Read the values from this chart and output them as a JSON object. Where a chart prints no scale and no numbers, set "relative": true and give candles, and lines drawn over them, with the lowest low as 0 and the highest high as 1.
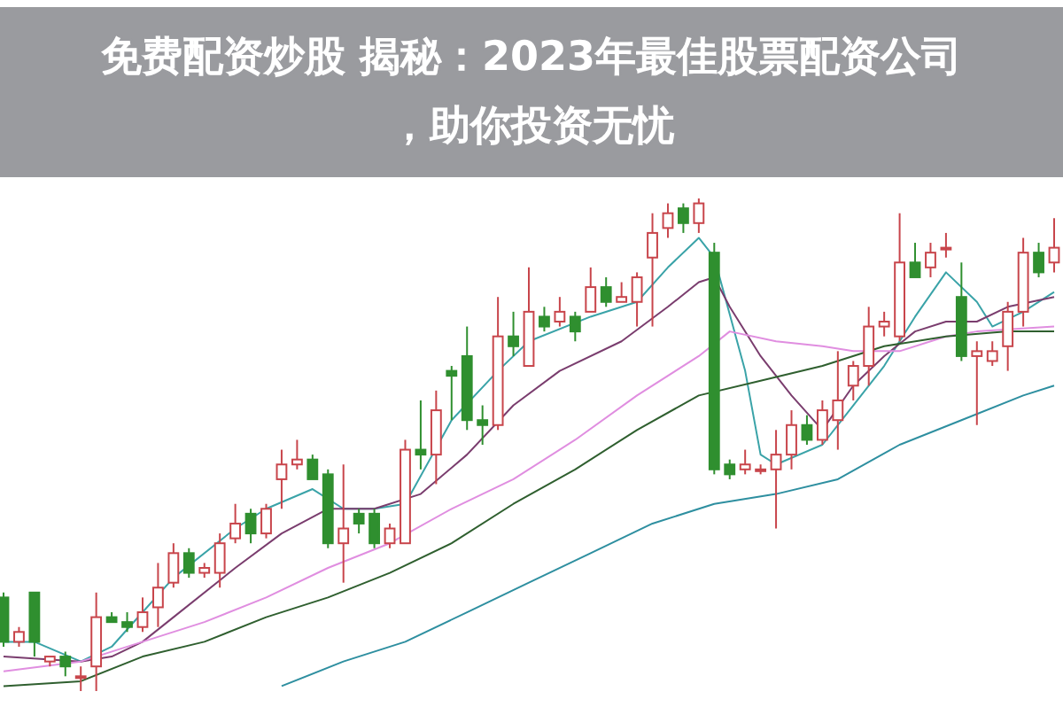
{
  "chart_data": {
    "type": "candlestick",
    "title": "免费配资炒股 揭秘：2023年最佳股票配资公司，助你投资无忧",
    "relative": true,
    "categories": [
      null,
      null,
      null,
      null,
      null,
      null,
      null,
      null,
      null,
      null,
      null,
      null,
      null,
      null,
      null,
      null,
      null,
      null,
      null,
      null,
      null,
      null,
      null,
      null,
      null,
      null,
      null,
      null,
      null,
      null,
      null,
      null,
      null,
      null,
      null,
      null,
      null,
      null,
      null,
      null,
      null,
      null,
      null,
      null,
      null,
      null,
      null,
      null,
      null,
      null,
      null,
      null,
      null,
      null,
      null,
      null,
      null,
      null,
      null,
      null,
      null,
      null,
      null,
      null,
      null,
      null,
      null,
      null,
      null
    ],
    "ohlc": [
      [
        0.19,
        0.2,
        0.09,
        0.1
      ],
      [
        0.1,
        0.13,
        0.09,
        0.12
      ],
      [
        0.2,
        0.2,
        0.07,
        0.1
      ],
      [
        0.06,
        0.07,
        0.05,
        0.07
      ],
      [
        0.07,
        0.08,
        0.03,
        0.05
      ],
      [
        0.03,
        0.05,
        0,
        0.03
      ],
      [
        0.05,
        0.2,
        0,
        0.15
      ],
      [
        0.15,
        0.16,
        0.14,
        0.14
      ],
      [
        0.14,
        0.16,
        0.12,
        0.13
      ],
      [
        0.13,
        0.19,
        0.12,
        0.16
      ],
      [
        0.17,
        0.26,
        0.13,
        0.21
      ],
      [
        0.22,
        0.3,
        0.21,
        0.28
      ],
      [
        0.28,
        0.29,
        0.23,
        0.24
      ],
      [
        0.24,
        0.26,
        0.23,
        0.25
      ],
      [
        0.24,
        0.32,
        0.21,
        0.3
      ],
      [
        0.31,
        0.38,
        0.3,
        0.34
      ],
      [
        0.36,
        0.37,
        0.3,
        0.32
      ],
      [
        0.32,
        0.38,
        0.31,
        0.37
      ],
      [
        0.43,
        0.49,
        0.37,
        0.46
      ],
      [
        0.46,
        0.51,
        0.45,
        0.47
      ],
      [
        0.47,
        0.48,
        0.43,
        0.43
      ],
      [
        0.44,
        0.45,
        0.29,
        0.3
      ],
      [
        0.3,
        0.46,
        0.22,
        0.33
      ],
      [
        0.36,
        0.37,
        0.32,
        0.34
      ],
      [
        0.36,
        0.37,
        0.29,
        0.3
      ],
      [
        0.3,
        0.34,
        0.29,
        0.33
      ],
      [
        0.3,
        0.51,
        0.3,
        0.49
      ],
      [
        0.49,
        0.59,
        0.45,
        0.48
      ],
      [
        0.48,
        0.61,
        0.42,
        0.57
      ],
      [
        0.65,
        0.66,
        0.55,
        0.64
      ],
      [
        0.68,
        0.74,
        0.53,
        0.55
      ],
      [
        0.55,
        0.58,
        0.5,
        0.54
      ],
      [
        0.54,
        0.8,
        0.53,
        0.72
      ],
      [
        0.72,
        0.77,
        0.68,
        0.7
      ],
      [
        0.66,
        0.86,
        0.66,
        0.77
      ],
      [
        0.76,
        0.78,
        0.73,
        0.74
      ],
      [
        0.75,
        0.8,
        0.74,
        0.77
      ],
      [
        0.76,
        0.77,
        0.71,
        0.73
      ],
      [
        0.77,
        0.86,
        0.77,
        0.82
      ],
      [
        0.82,
        0.84,
        0.78,
        0.79
      ],
      [
        0.79,
        0.83,
        0.79,
        0.8
      ],
      [
        0.79,
        0.85,
        0.74,
        0.84
      ],
      [
        0.88,
        0.97,
        0.74,
        0.93
      ],
      [
        0.94,
        0.99,
        0.92,
        0.97
      ],
      [
        0.98,
        0.99,
        0.93,
        0.95
      ],
      [
        0.95,
        1,
        0.93,
        0.99
      ],
      [
        0.89,
        0.91,
        0.44,
        0.45
      ],
      [
        0.46,
        0.47,
        0.43,
        0.44
      ],
      [
        0.45,
        0.49,
        0.44,
        0.46
      ],
      [
        0.45,
        0.46,
        0.44,
        0.45
      ],
      [
        0.45,
        0.53,
        0.33,
        0.48
      ],
      [
        0.48,
        0.57,
        0.45,
        0.54
      ],
      [
        0.54,
        0.56,
        0.5,
        0.51
      ],
      [
        0.51,
        0.59,
        0.5,
        0.57
      ],
      [
        0.55,
        0.69,
        0.49,
        0.59
      ],
      [
        0.62,
        0.67,
        0.59,
        0.66
      ],
      [
        0.66,
        0.78,
        0.62,
        0.74
      ],
      [
        0.74,
        0.77,
        0.72,
        0.75
      ],
      [
        0.72,
        0.97,
        0.71,
        0.87
      ],
      [
        0.87,
        0.91,
        0.84,
        0.84
      ],
      [
        0.86,
        0.91,
        0.84,
        0.89
      ],
      [
        0.9,
        0.93,
        0.88,
        0.9
      ],
      [
        0.8,
        0.87,
        0.67,
        0.68
      ],
      [
        0.68,
        0.71,
        0.54,
        0.69
      ],
      [
        0.67,
        0.71,
        0.66,
        0.69
      ],
      [
        0.7,
        0.79,
        0.65,
        0.77
      ],
      [
        0.77,
        0.92,
        0.74,
        0.89
      ],
      [
        0.89,
        0.91,
        0.84,
        0.85
      ],
      [
        0.87,
        0.96,
        0.85,
        0.9
      ]
    ],
    "series": [
      {
        "type": "line",
        "color": "#3aa3a8",
        "values": [
          0.1,
          null,
          0.1,
          null,
          null,
          0.06,
          null,
          0.09,
          null,
          0.16,
          null,
          0.23,
          null,
          null,
          null,
          0.33,
          null,
          0.37,
          null,
          null,
          0.41,
          null,
          0.37,
          null,
          0.37,
          null,
          0.38,
          null,
          null,
          0.55,
          null,
          null,
          0.65,
          null,
          0.71,
          null,
          null,
          null,
          0.76,
          null,
          null,
          0.79,
          null,
          0.86,
          null,
          0.92,
          0.88,
          null,
          0.65,
          0.48,
          0.46,
          null,
          null,
          0.5,
          null,
          0.58,
          null,
          0.66,
          null,
          0.76,
          null,
          0.85,
          null,
          0.79,
          0.74,
          null,
          0.77,
          null,
          0.81
        ]
      },
      {
        "type": "line",
        "color": "#7a3d6e",
        "values": [
          0.07,
          null,
          null,
          null,
          null,
          0.06,
          null,
          0.07,
          null,
          0.1,
          null,
          0.15,
          null,
          null,
          null,
          0.25,
          null,
          null,
          0.32,
          null,
          null,
          0.37,
          null,
          null,
          0.37,
          null,
          null,
          0.4,
          null,
          null,
          0.48,
          null,
          null,
          0.58,
          null,
          null,
          0.65,
          null,
          null,
          null,
          0.71,
          null,
          null,
          0.78,
          null,
          0.83,
          0.84,
          0.78,
          null,
          0.68,
          null,
          0.6,
          null,
          0.53,
          null,
          0.62,
          null,
          0.68,
          null,
          0.73,
          null,
          0.75,
          null,
          0.75,
          null,
          0.78,
          null,
          null,
          0.8
        ]
      },
      {
        "type": "line",
        "color": "#e08ee0",
        "values": [
          0.04,
          null,
          null,
          null,
          null,
          0.06,
          null,
          null,
          null,
          0.1,
          null,
          null,
          null,
          0.14,
          null,
          null,
          null,
          0.19,
          null,
          null,
          null,
          0.25,
          null,
          null,
          null,
          0.3,
          null,
          null,
          null,
          0.37,
          null,
          null,
          null,
          0.43,
          null,
          null,
          null,
          0.51,
          null,
          null,
          null,
          0.6,
          null,
          null,
          null,
          0.68,
          null,
          0.73,
          null,
          null,
          0.71,
          null,
          null,
          0.7,
          null,
          0.69,
          null,
          null,
          0.69,
          null,
          null,
          0.72,
          null,
          0.73,
          null,
          null,
          null,
          null,
          0.74
        ]
      },
      {
        "type": "line",
        "color": "#2f5f2f",
        "values": [
          0.01,
          null,
          null,
          null,
          null,
          0.02,
          null,
          null,
          null,
          0.07,
          null,
          null,
          null,
          0.1,
          null,
          null,
          null,
          0.15,
          null,
          null,
          null,
          0.19,
          null,
          null,
          null,
          0.24,
          null,
          null,
          null,
          0.3,
          null,
          null,
          null,
          0.38,
          null,
          null,
          null,
          0.45,
          null,
          null,
          null,
          0.53,
          null,
          null,
          null,
          0.6,
          null,
          null,
          null,
          0.63,
          null,
          null,
          null,
          0.66,
          null,
          null,
          null,
          0.7,
          null,
          null,
          null,
          0.72,
          null,
          null,
          null,
          0.73,
          null,
          null,
          0.73
        ]
      },
      {
        "type": "line",
        "color": "#2e8fa0",
        "values": [
          null,
          null,
          null,
          null,
          null,
          null,
          null,
          null,
          null,
          null,
          null,
          null,
          null,
          null,
          null,
          null,
          null,
          null,
          0.01,
          null,
          null,
          null,
          0.06,
          null,
          null,
          null,
          0.1,
          null,
          null,
          null,
          0.16,
          null,
          null,
          null,
          0.22,
          null,
          null,
          null,
          0.28,
          null,
          null,
          null,
          0.34,
          null,
          null,
          null,
          0.38,
          null,
          null,
          null,
          0.4,
          null,
          null,
          null,
          0.43,
          null,
          null,
          null,
          0.5,
          null,
          null,
          null,
          0.55,
          null,
          null,
          null,
          0.6,
          null,
          0.62
        ]
      }
    ]
  }
}
